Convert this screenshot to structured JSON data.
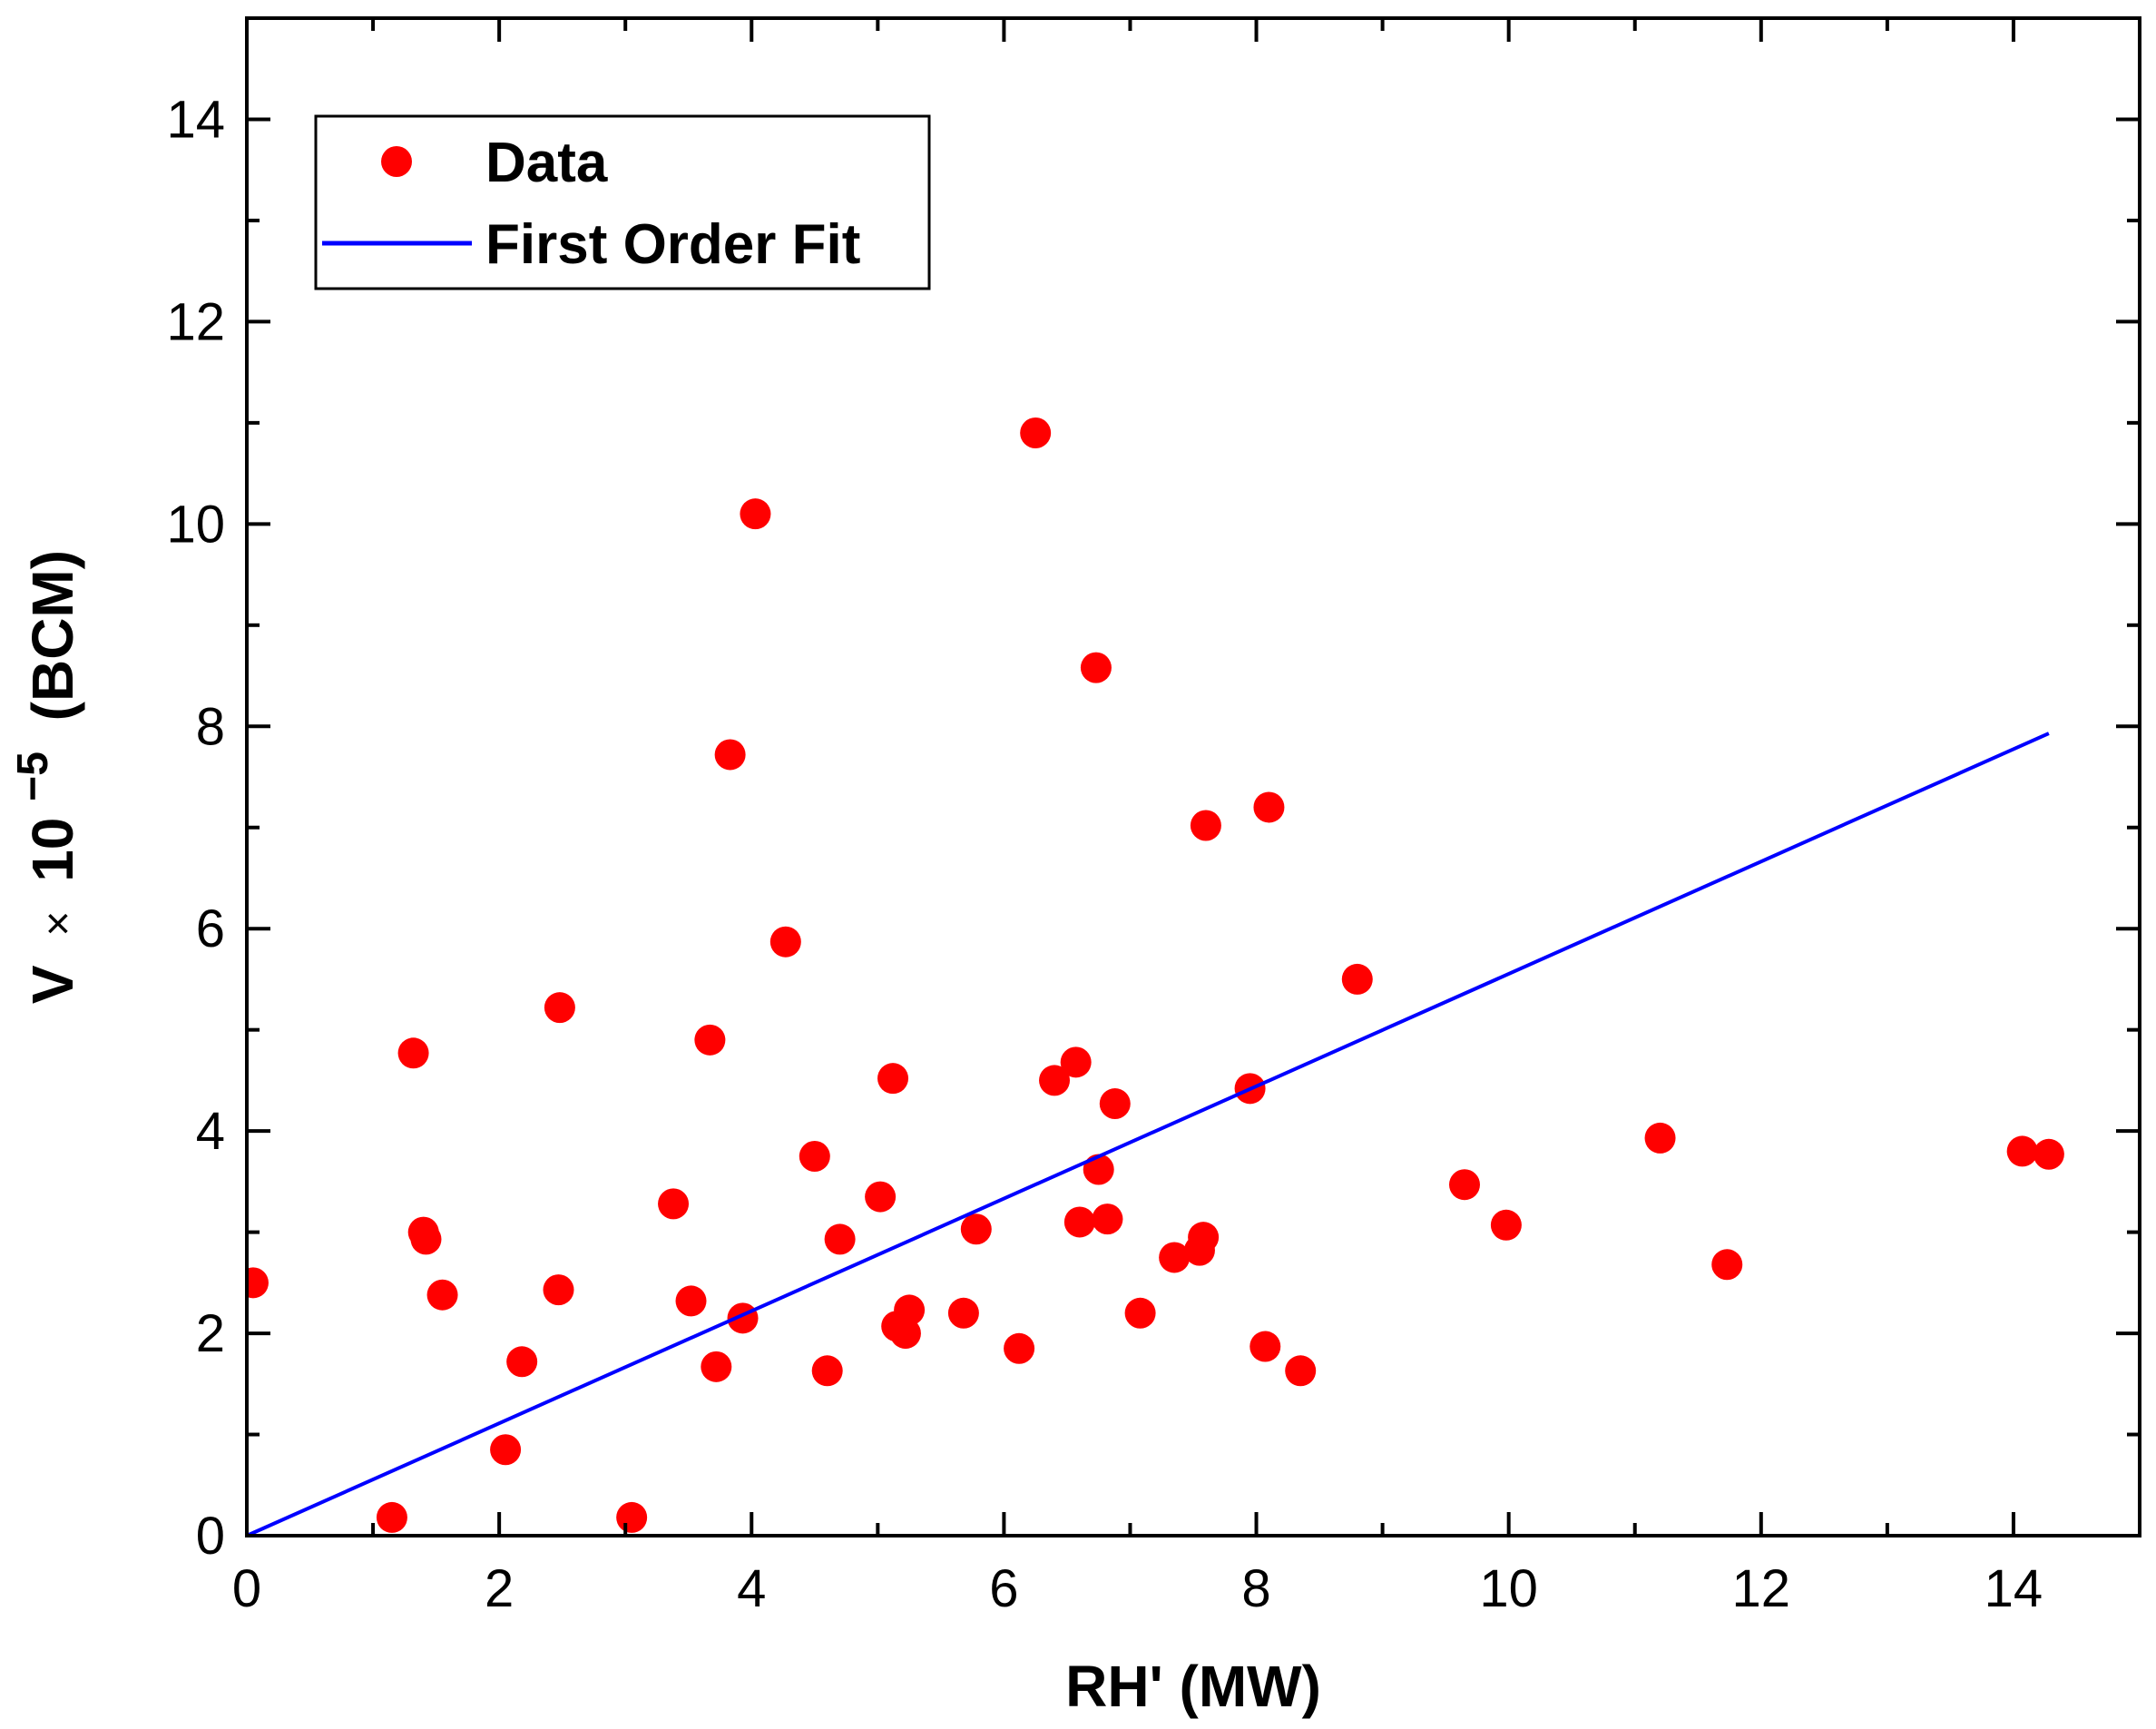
{
  "chart_data": {
    "type": "scatter",
    "title": "",
    "xlabel": "RH' (MW)",
    "ylabel": {
      "base": "V",
      "times": "×",
      "ten": "10",
      "exponent": "−5",
      "unit": "(BCM)"
    },
    "xlim": [
      0,
      15
    ],
    "ylim": [
      0,
      15
    ],
    "xticks": [
      0,
      2,
      4,
      6,
      8,
      10,
      12,
      14
    ],
    "yticks": [
      0,
      2,
      4,
      6,
      8,
      10,
      12,
      14
    ],
    "xtick_labels": [
      "0",
      "2",
      "4",
      "6",
      "8",
      "10",
      "12",
      "14"
    ],
    "ytick_labels": [
      "0",
      "2",
      "4",
      "6",
      "8",
      "10",
      "12",
      "14"
    ],
    "grid": false,
    "legend_position": "top-left",
    "colors": {
      "data": "#ff0000",
      "fit": "#0000ff",
      "axes": "#000000"
    },
    "series": [
      {
        "name": "Data",
        "kind": "scatter",
        "points": [
          [
            0.05,
            2.5
          ],
          [
            1.15,
            0.18
          ],
          [
            1.32,
            4.77
          ],
          [
            1.4,
            3.0
          ],
          [
            1.42,
            2.93
          ],
          [
            1.55,
            2.38
          ],
          [
            2.05,
            0.85
          ],
          [
            2.18,
            1.72
          ],
          [
            2.47,
            2.43
          ],
          [
            2.48,
            5.22
          ],
          [
            3.05,
            0.18
          ],
          [
            3.38,
            3.28
          ],
          [
            3.52,
            2.32
          ],
          [
            3.67,
            4.9
          ],
          [
            3.72,
            1.67
          ],
          [
            3.83,
            7.72
          ],
          [
            3.93,
            2.15
          ],
          [
            4.03,
            10.1
          ],
          [
            4.27,
            5.87
          ],
          [
            4.5,
            3.75
          ],
          [
            4.6,
            1.63
          ],
          [
            4.7,
            2.93
          ],
          [
            5.02,
            3.35
          ],
          [
            5.12,
            4.52
          ],
          [
            5.15,
            2.07
          ],
          [
            5.22,
            2.0
          ],
          [
            5.25,
            2.23
          ],
          [
            5.68,
            2.2
          ],
          [
            5.78,
            3.03
          ],
          [
            6.12,
            1.85
          ],
          [
            6.25,
            10.9
          ],
          [
            6.4,
            4.5
          ],
          [
            6.57,
            4.68
          ],
          [
            6.6,
            3.1
          ],
          [
            6.73,
            8.58
          ],
          [
            6.75,
            3.62
          ],
          [
            6.82,
            3.13
          ],
          [
            6.88,
            4.27
          ],
          [
            7.08,
            2.2
          ],
          [
            7.35,
            2.75
          ],
          [
            7.55,
            2.82
          ],
          [
            7.58,
            2.95
          ],
          [
            7.6,
            7.02
          ],
          [
            7.95,
            4.42
          ],
          [
            8.07,
            1.87
          ],
          [
            8.1,
            7.2
          ],
          [
            8.35,
            1.63
          ],
          [
            8.8,
            5.5
          ],
          [
            9.65,
            3.47
          ],
          [
            9.98,
            3.07
          ],
          [
            11.2,
            3.93
          ],
          [
            11.73,
            2.68
          ],
          [
            14.07,
            3.8
          ],
          [
            14.28,
            3.77
          ]
        ]
      },
      {
        "name": "First Order Fit",
        "kind": "line",
        "points": [
          [
            0,
            0
          ],
          [
            14.28,
            7.93
          ]
        ]
      }
    ]
  }
}
